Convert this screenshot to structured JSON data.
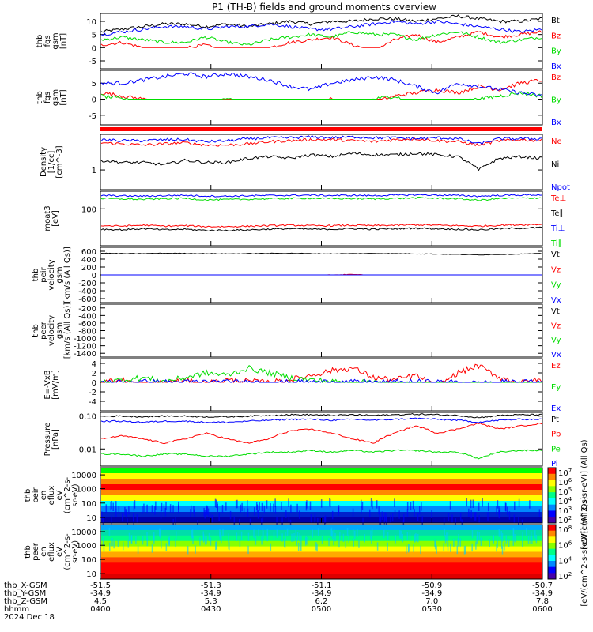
{
  "title": "P1 (TH-B) fields and ground moments overview",
  "colors": {
    "black": "#000000",
    "red": "#ff0000",
    "green": "#00dd00",
    "blue": "#0000ff"
  },
  "chart_data": [
    {
      "type": "line",
      "ylabel": [
        "thb",
        "fgs",
        "gsm",
        "[nT]"
      ],
      "yticks": [
        "10",
        "5",
        "0",
        "-5"
      ],
      "ylim": [
        -8,
        13
      ],
      "series": [
        {
          "name": "Bt",
          "color": "#000000",
          "values": [
            6,
            7,
            8,
            9,
            9,
            8,
            9,
            8,
            9,
            10,
            9,
            10,
            10,
            11,
            11,
            10,
            11,
            12,
            11,
            10,
            10,
            11
          ]
        },
        {
          "name": "Bz",
          "color": "#ff0000",
          "values": [
            1,
            2,
            0,
            -1,
            0,
            1,
            -2,
            -3,
            0,
            2,
            3,
            4,
            1,
            -1,
            3,
            5,
            2,
            4,
            6,
            4,
            5,
            6
          ]
        },
        {
          "name": "By",
          "color": "#00dd00",
          "values": [
            3,
            4,
            3,
            2,
            2,
            4,
            2,
            1,
            3,
            4,
            5,
            4,
            6,
            5,
            5,
            3,
            5,
            6,
            4,
            2,
            3,
            4
          ]
        },
        {
          "name": "Bx",
          "color": "#0000ff",
          "values": [
            5,
            6,
            7,
            8,
            8,
            7,
            8,
            8,
            9,
            8,
            7,
            7,
            8,
            9,
            10,
            9,
            10,
            9,
            8,
            7,
            6,
            7
          ]
        }
      ]
    },
    {
      "type": "line",
      "ylabel": [
        "thb",
        "fgs",
        "gsm",
        "[nT]"
      ],
      "yticks": [
        "5",
        "0",
        "-5"
      ],
      "ylim": [
        -8,
        9
      ],
      "series": [
        {
          "name": "Bz",
          "color": "#ff0000",
          "values": [
            2,
            1,
            0,
            -1,
            -2,
            -3,
            -4,
            -6,
            -5,
            -3,
            -1,
            0,
            -2,
            -1,
            1,
            2,
            3,
            2,
            4,
            3,
            5,
            6
          ]
        },
        {
          "name": "By",
          "color": "#00dd00",
          "values": [
            1,
            0,
            -1,
            -1,
            -2,
            -1,
            0,
            -1,
            -2,
            -3,
            -4,
            -3,
            -2,
            0,
            1,
            -2,
            -5,
            -1,
            0,
            1,
            2,
            1
          ]
        },
        {
          "name": "Bx",
          "color": "#0000ff",
          "values": [
            5,
            5,
            6,
            7,
            8,
            7,
            8,
            7,
            6,
            4,
            3,
            5,
            6,
            7,
            6,
            4,
            2,
            5,
            4,
            3,
            2,
            1
          ]
        }
      ]
    },
    {
      "type": "line",
      "ylabel": [
        "Density",
        "[1/cc]",
        "[cm^-3]"
      ],
      "yticks": [
        "1"
      ],
      "ylim": [
        0.5,
        3.5
      ],
      "series": [
        {
          "name": "Ne",
          "color": "#ff0000",
          "values": [
            2.6,
            2.5,
            2.4,
            2.5,
            2.6,
            2.4,
            2.4,
            2.5,
            2.7,
            2.8,
            2.9,
            2.9,
            2.8,
            2.7,
            2.9,
            3.0,
            2.8,
            2.7,
            2.4,
            2.8,
            2.9,
            2.8
          ]
        },
        {
          "name": "Ni",
          "color": "#000000",
          "values": [
            1.4,
            1.3,
            1.3,
            1.2,
            1.4,
            1.3,
            1.3,
            1.5,
            1.6,
            1.5,
            1.7,
            1.6,
            1.8,
            1.7,
            1.7,
            1.8,
            1.7,
            1.6,
            1.0,
            1.5,
            1.6,
            1.5
          ]
        },
        {
          "name": "Npot",
          "color": "#0000ff",
          "values": [
            2.9,
            2.8,
            2.8,
            2.9,
            2.9,
            2.7,
            2.8,
            3.0,
            3.1,
            3.1,
            3.2,
            3.1,
            3.2,
            3.1,
            3.1,
            3.0,
            3.1,
            3.0,
            2.5,
            3.0,
            3.0,
            3.0
          ]
        }
      ]
    },
    {
      "type": "line",
      "ylabel": [
        "moat3",
        "[eV]"
      ],
      "yticks": [
        "100"
      ],
      "ylim": [
        10,
        300
      ],
      "series": [
        {
          "name": "Te⊥",
          "color": "#ff0000",
          "values": [
            35,
            34,
            36,
            34,
            35,
            33,
            33,
            34,
            35,
            36,
            35,
            35,
            36,
            35,
            36,
            37,
            36,
            35,
            34,
            36,
            37,
            38
          ]
        },
        {
          "name": "Te∥",
          "color": "#000000",
          "values": [
            28,
            27,
            29,
            27,
            28,
            26,
            26,
            27,
            28,
            29,
            28,
            28,
            29,
            28,
            29,
            30,
            29,
            28,
            27,
            29,
            30,
            31
          ]
        },
        {
          "name": "Ti⊥",
          "color": "#0000ff",
          "values": [
            230,
            225,
            220,
            228,
            232,
            222,
            220,
            226,
            230,
            232,
            235,
            230,
            232,
            228,
            234,
            240,
            236,
            230,
            220,
            232,
            236,
            240
          ]
        },
        {
          "name": "Ti∥",
          "color": "#00dd00",
          "values": [
            190,
            185,
            180,
            188,
            192,
            175,
            178,
            182,
            188,
            190,
            195,
            188,
            190,
            186,
            192,
            198,
            194,
            188,
            170,
            190,
            194,
            198
          ]
        }
      ]
    },
    {
      "type": "line",
      "ylabel": [
        "thb",
        "peir",
        "velocity",
        "gsm",
        "[km/s (All Qs)]"
      ],
      "yticks": [
        "600",
        "400",
        "200",
        "0",
        "-200",
        "-400",
        "-600"
      ],
      "ylim": [
        -700,
        700
      ],
      "series": [
        {
          "name": "Vt",
          "color": "#000000",
          "values": [
            550,
            540,
            540,
            550,
            545,
            540,
            535,
            540,
            545,
            550,
            540,
            535,
            540,
            545,
            540,
            535,
            530,
            520,
            510,
            520,
            530,
            540
          ]
        },
        {
          "name": "Vz",
          "color": "#ff0000",
          "values": [
            -30,
            -20,
            -10,
            -20,
            -30,
            -10,
            -20,
            -40,
            -20,
            -10,
            -30,
            0,
            10,
            -10,
            -20,
            -30,
            -40,
            -20,
            -10,
            -30,
            -50,
            -40
          ]
        },
        {
          "name": "Vy",
          "color": "#00dd00",
          "values": [
            -40,
            -50,
            -60,
            -40,
            -30,
            -50,
            -60,
            -40,
            -30,
            -50,
            -40,
            -60,
            -30,
            -40,
            -50,
            -80,
            -60,
            -50,
            -150,
            -80,
            -60,
            -100
          ]
        },
        {
          "name": "Vx",
          "color": "#0000ff",
          "values": [
            -520,
            -530,
            -525,
            -520,
            -530,
            -535,
            -530,
            -525,
            -530,
            -535,
            -530,
            -525,
            -530,
            -535,
            -540,
            -530,
            -525,
            -540,
            -560,
            -530,
            -520,
            -510
          ]
        }
      ]
    },
    {
      "type": "line",
      "ylabel": [
        "thb",
        "peer",
        "velocity",
        "gsm",
        "[km/s (All Qs)]"
      ],
      "yticks": [
        "-200",
        "-400",
        "-600",
        "-800",
        "-1000",
        "-1200",
        "-1400"
      ],
      "ylim": [
        -1500,
        -100
      ],
      "series": [
        {
          "name": "Vt",
          "color": "#000000",
          "values": []
        },
        {
          "name": "Vz",
          "color": "#ff0000",
          "values": []
        },
        {
          "name": "Vy",
          "color": "#00dd00",
          "values": []
        },
        {
          "name": "Vx",
          "color": "#0000ff",
          "values": []
        }
      ]
    },
    {
      "type": "line",
      "ylabel": [
        "E=-VxB",
        "[mV/m]"
      ],
      "yticks": [
        "4",
        "2",
        "0",
        "-2",
        "-4"
      ],
      "ylim": [
        -6,
        5
      ],
      "series": [
        {
          "name": "Ez",
          "color": "#ff0000",
          "values": [
            0,
            0.5,
            -0.5,
            0,
            0.3,
            -0.2,
            0.5,
            0.2,
            0,
            0.5,
            1.5,
            2.5,
            3.0,
            1.0,
            0.5,
            1.5,
            -1.0,
            2.0,
            3.5,
            1.0,
            0,
            0.5
          ]
        },
        {
          "name": "Ey",
          "color": "#00dd00",
          "values": [
            0,
            0.5,
            1.0,
            0.2,
            1.0,
            2.0,
            1.5,
            3.0,
            2.0,
            1.0,
            0.5,
            0.2,
            -0.5,
            0.5,
            -1.5,
            -1.0,
            -2.0,
            -2.0,
            -3.5,
            -1.5,
            -1.0,
            -0.5
          ]
        },
        {
          "name": "Ex",
          "color": "#0000ff",
          "values": [
            0,
            0,
            0.1,
            0,
            0,
            0.1,
            0,
            0,
            0,
            0,
            0,
            0.1,
            0,
            0,
            0,
            0.1,
            0,
            0,
            -0.2,
            0,
            0,
            0
          ]
        }
      ]
    },
    {
      "type": "line",
      "ylabel": [
        "Pressure",
        "[nPa]"
      ],
      "yticks": [
        "0.10",
        "0.01"
      ],
      "ylim": [
        0.003,
        0.13
      ],
      "series": [
        {
          "name": "Pt",
          "color": "#000000",
          "values": [
            0.1,
            0.1,
            0.095,
            0.1,
            0.1,
            0.095,
            0.095,
            0.1,
            0.105,
            0.11,
            0.11,
            0.105,
            0.11,
            0.105,
            0.11,
            0.115,
            0.11,
            0.105,
            0.09,
            0.105,
            0.11,
            0.11
          ]
        },
        {
          "name": "Pb",
          "color": "#ff0000",
          "values": [
            0.02,
            0.025,
            0.02,
            0.015,
            0.02,
            0.03,
            0.02,
            0.015,
            0.02,
            0.035,
            0.04,
            0.03,
            0.02,
            0.015,
            0.03,
            0.05,
            0.03,
            0.04,
            0.06,
            0.04,
            0.05,
            0.06
          ]
        },
        {
          "name": "Pe",
          "color": "#00dd00",
          "values": [
            0.007,
            0.007,
            0.006,
            0.007,
            0.007,
            0.006,
            0.006,
            0.007,
            0.008,
            0.008,
            0.009,
            0.008,
            0.009,
            0.008,
            0.009,
            0.009,
            0.008,
            0.008,
            0.005,
            0.008,
            0.009,
            0.009
          ]
        },
        {
          "name": "Pi",
          "color": "#0000ff",
          "values": [
            0.07,
            0.07,
            0.065,
            0.07,
            0.07,
            0.065,
            0.065,
            0.07,
            0.075,
            0.08,
            0.08,
            0.075,
            0.08,
            0.075,
            0.08,
            0.085,
            0.08,
            0.075,
            0.065,
            0.075,
            0.08,
            0.08
          ]
        }
      ]
    },
    {
      "type": "heatmap",
      "ylabel": [
        "thb",
        "peir",
        "en",
        "eflux",
        "eV",
        "(cm^2-s-",
        "sr-eV)"
      ],
      "yticks": [
        "10000",
        "1000",
        "100",
        "10"
      ],
      "colorbar_ticks": [
        "10^7",
        "10^6",
        "10^5",
        "10^4",
        "10^3",
        "10^2"
      ],
      "colorbar_label": "[eV/(cm^2-s-sr-eV)] (All Qs)"
    },
    {
      "type": "heatmap",
      "ylabel": [
        "thb",
        "peer",
        "en",
        "eflux",
        "eV",
        "(cm^2-s-",
        "sr-eV)"
      ],
      "yticks": [
        "10000",
        "1000",
        "100",
        "10"
      ],
      "colorbar_ticks": [
        "10^8",
        "10^6",
        "10^4",
        "10^2"
      ],
      "colorbar_label": "[eV/(cm^2-s-sr-eV)] (All Qs)"
    }
  ],
  "x_axis": {
    "rows": [
      {
        "label": "thb_X-GSM",
        "values": [
          "-51.5",
          "-51.3",
          "-51.1",
          "-50.9",
          "-50.7"
        ]
      },
      {
        "label": "thb_Y-GSM",
        "values": [
          "-34.9",
          "-34.9",
          "-34.9",
          "-34.9",
          "-34.9"
        ]
      },
      {
        "label": "thb_Z-GSM",
        "values": [
          "4.5",
          "5.3",
          "6.2",
          "7.0",
          "7.8"
        ]
      },
      {
        "label": "hhmm",
        "values": [
          "0400",
          "0430",
          "0500",
          "0530",
          "0600"
        ]
      }
    ],
    "date": "2024 Dec 18"
  }
}
